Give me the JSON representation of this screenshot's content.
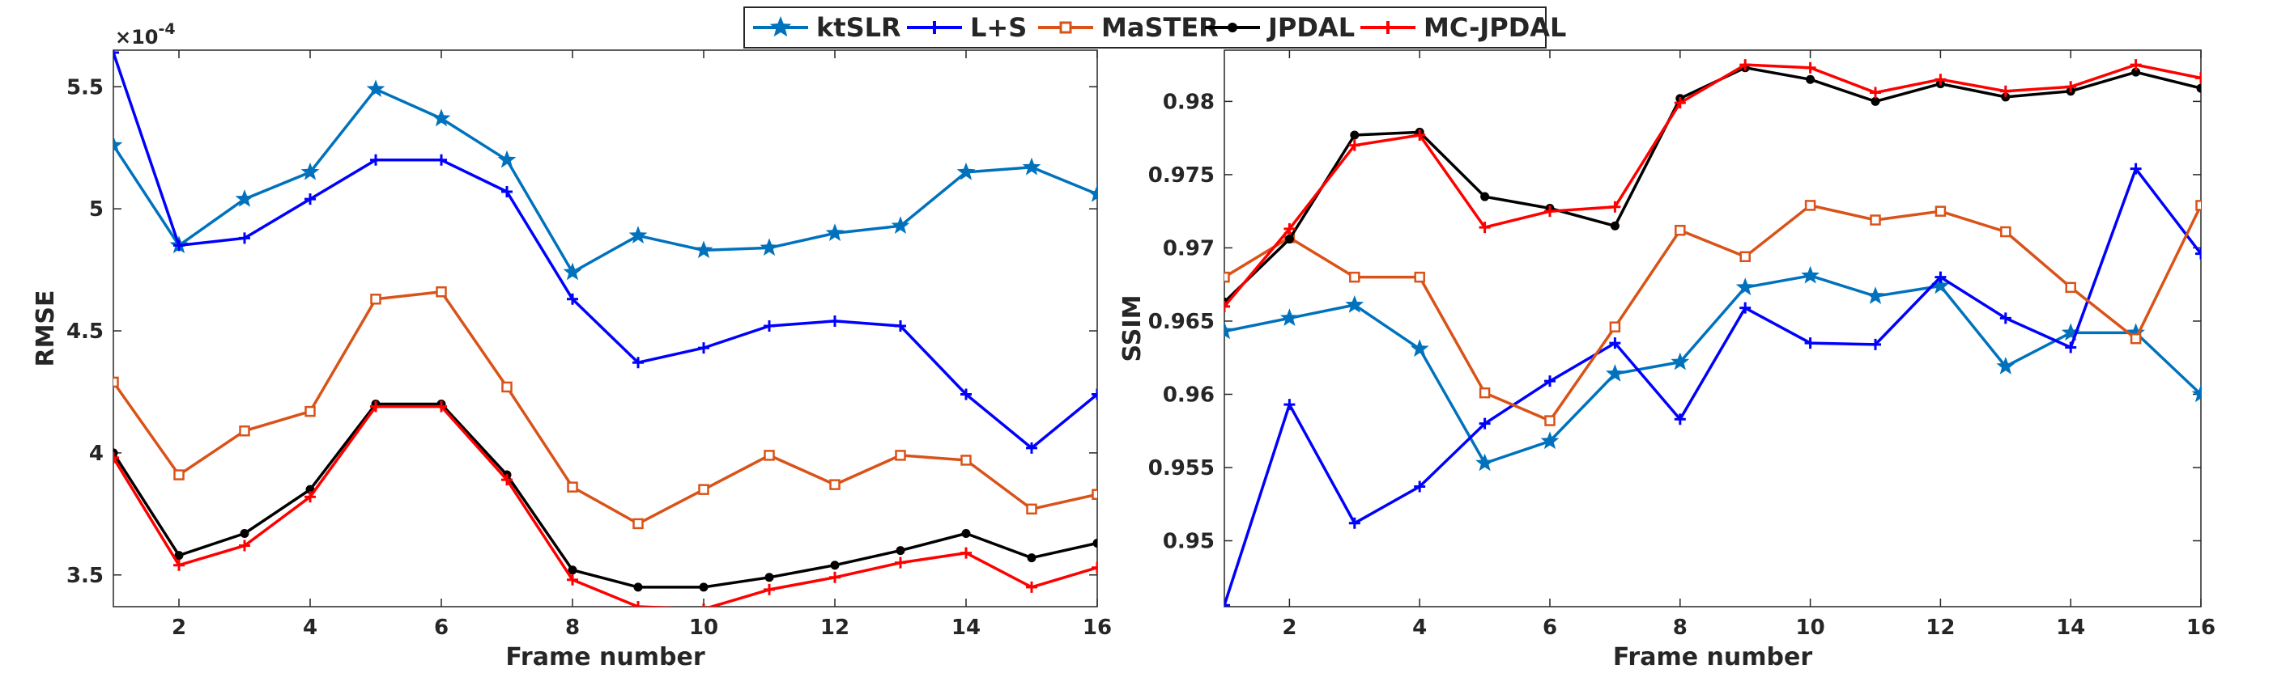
{
  "legend": {
    "entries": [
      {
        "label": "ktSLR",
        "color": "#0072BD",
        "marker": "star"
      },
      {
        "label": "L+S",
        "color": "#0000FF",
        "marker": "plus"
      },
      {
        "label": "MaSTER",
        "color": "#D95319",
        "marker": "square"
      },
      {
        "label": "JPDAL",
        "color": "#000000",
        "marker": "dot"
      },
      {
        "label": "MC-JPDAL",
        "color": "#FF0000",
        "marker": "plus"
      }
    ]
  },
  "chart_data": [
    {
      "type": "line",
      "title": "",
      "xlabel": "Frame number",
      "ylabel": "RMSE",
      "exponent_label": "×10",
      "exponent_power": "-4",
      "xlim": [
        1,
        16
      ],
      "ylim": [
        3.37,
        5.65
      ],
      "xticks": [
        2,
        4,
        6,
        8,
        10,
        12,
        14,
        16
      ],
      "yticks": [
        3.5,
        4,
        4.5,
        5,
        5.5
      ],
      "ytick_labels": [
        "3.5",
        "4",
        "4.5",
        "5",
        "5.5"
      ],
      "x": [
        1,
        2,
        3,
        4,
        5,
        6,
        7,
        8,
        9,
        10,
        11,
        12,
        13,
        14,
        15,
        16
      ],
      "series": [
        {
          "name": "ktSLR",
          "values": [
            5.26,
            4.85,
            5.04,
            5.15,
            5.49,
            5.37,
            5.2,
            4.74,
            4.89,
            4.83,
            4.84,
            4.9,
            4.93,
            5.15,
            5.17,
            5.06
          ]
        },
        {
          "name": "L+S",
          "values": [
            5.64,
            4.85,
            4.88,
            5.04,
            5.2,
            5.2,
            5.07,
            4.63,
            4.37,
            4.43,
            4.52,
            4.54,
            4.52,
            4.24,
            4.02,
            4.24
          ]
        },
        {
          "name": "MaSTER",
          "values": [
            4.29,
            3.91,
            4.09,
            4.17,
            4.63,
            4.66,
            4.27,
            3.86,
            3.71,
            3.85,
            3.99,
            3.87,
            3.99,
            3.97,
            3.77,
            3.83
          ]
        },
        {
          "name": "JPDAL",
          "values": [
            4.0,
            3.58,
            3.67,
            3.85,
            4.2,
            4.2,
            3.91,
            3.52,
            3.45,
            3.45,
            3.49,
            3.54,
            3.6,
            3.67,
            3.57,
            3.63
          ]
        },
        {
          "name": "MC-JPDAL",
          "values": [
            3.98,
            3.54,
            3.62,
            3.82,
            4.19,
            4.19,
            3.89,
            3.48,
            3.37,
            3.36,
            3.44,
            3.49,
            3.55,
            3.59,
            3.45,
            3.53
          ]
        }
      ]
    },
    {
      "type": "line",
      "title": "",
      "xlabel": "Frame number",
      "ylabel": "SSIM",
      "xlim": [
        1,
        16
      ],
      "ylim": [
        0.9455,
        0.9835
      ],
      "xticks": [
        2,
        4,
        6,
        8,
        10,
        12,
        14,
        16
      ],
      "yticks": [
        0.95,
        0.955,
        0.96,
        0.965,
        0.97,
        0.975,
        0.98
      ],
      "ytick_labels": [
        "0.95",
        "0.955",
        "0.96",
        "0.965",
        "0.97",
        "0.975",
        "0.98"
      ],
      "x": [
        1,
        2,
        3,
        4,
        5,
        6,
        7,
        8,
        9,
        10,
        11,
        12,
        13,
        14,
        15,
        16
      ],
      "series": [
        {
          "name": "ktSLR",
          "values": [
            0.9643,
            0.9652,
            0.9661,
            0.9631,
            0.9553,
            0.9568,
            0.9614,
            0.9622,
            0.9673,
            0.9681,
            0.9667,
            0.9674,
            0.9619,
            0.9642,
            0.9642,
            0.96
          ]
        },
        {
          "name": "L+S",
          "values": [
            0.9456,
            0.9593,
            0.9512,
            0.9537,
            0.958,
            0.9609,
            0.9635,
            0.9583,
            0.9659,
            0.9635,
            0.9634,
            0.968,
            0.9652,
            0.9632,
            0.9754,
            0.9696
          ]
        },
        {
          "name": "MaSTER",
          "values": [
            0.968,
            0.9707,
            0.968,
            0.968,
            0.9601,
            0.9582,
            0.9646,
            0.9712,
            0.9694,
            0.9729,
            0.9719,
            0.9725,
            0.9711,
            0.9673,
            0.9638,
            0.9729
          ]
        },
        {
          "name": "JPDAL",
          "values": [
            0.9663,
            0.9706,
            0.9777,
            0.9779,
            0.9735,
            0.9727,
            0.9715,
            0.9802,
            0.9823,
            0.9815,
            0.98,
            0.9812,
            0.9803,
            0.9807,
            0.982,
            0.9809
          ]
        },
        {
          "name": "MC-JPDAL",
          "values": [
            0.966,
            0.9713,
            0.977,
            0.9777,
            0.9714,
            0.9725,
            0.9728,
            0.9799,
            0.9825,
            0.9823,
            0.9806,
            0.9815,
            0.9807,
            0.981,
            0.9825,
            0.9816
          ]
        }
      ]
    }
  ]
}
